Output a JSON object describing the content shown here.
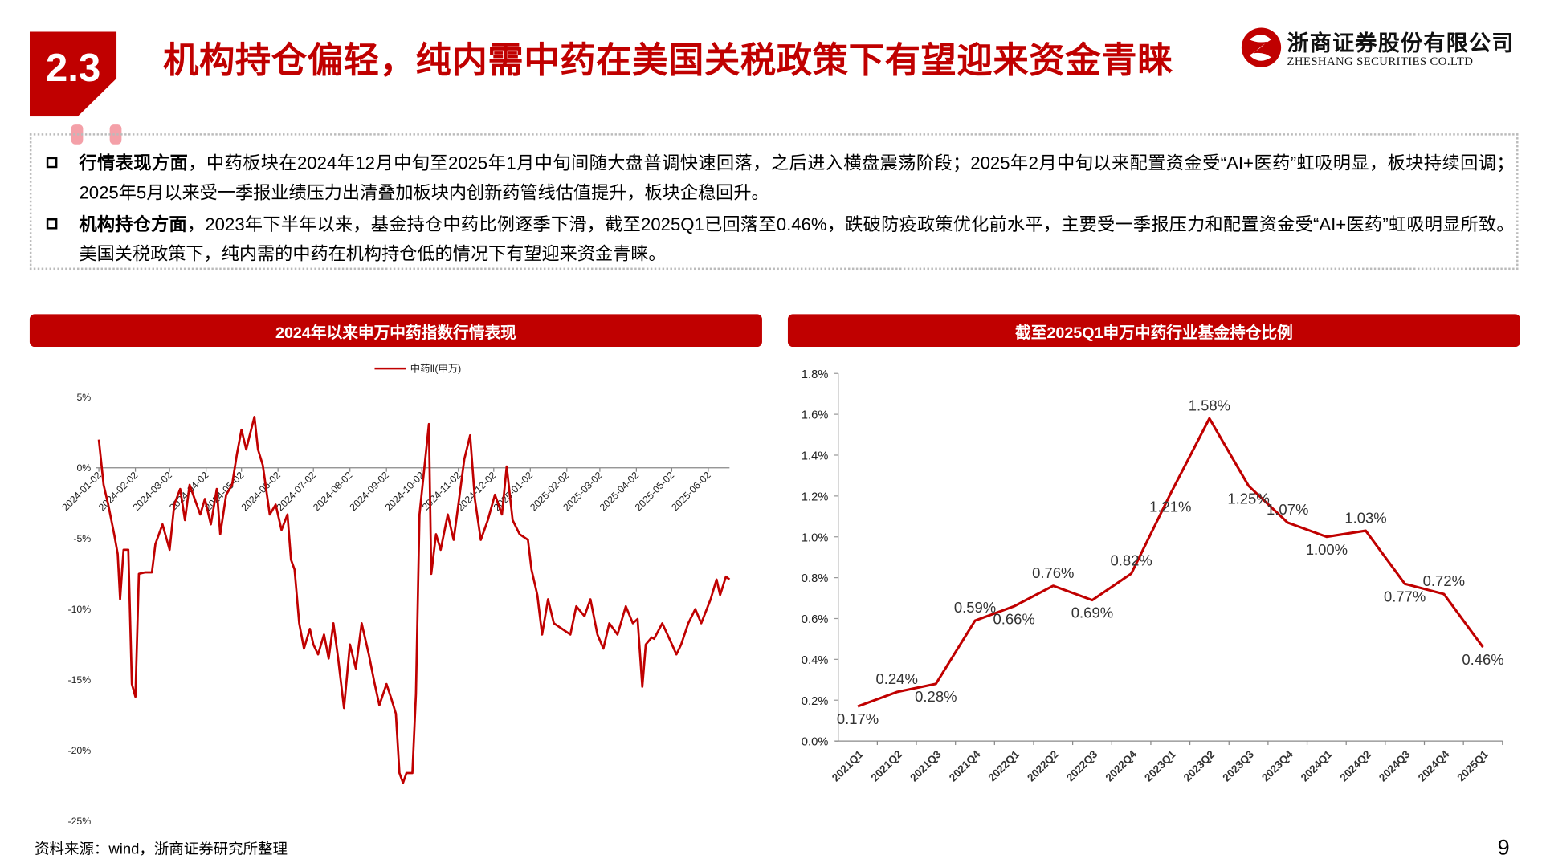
{
  "header": {
    "section": "2.3",
    "title": "机构持仓偏轻，纯内需中药在美国关税政策下有望迎来资金青睐",
    "company": "浙商证券股份有限公司",
    "company_en": "ZHESHANG SECURITIES CO.LTD"
  },
  "bullets": [
    {
      "heading": "行情表现方面",
      "text": "，中药板块在2024年12月中旬至2025年1月中旬间随大盘普调快速回落，之后进入横盘震荡阶段；2025年2月中旬以来配置资金受“AI+医药”虹吸明显，板块持续回调；2025年5月以来受一季报业绩压力出清叠加板块内创新药管线估值提升，板块企稳回升。"
    },
    {
      "heading": "机构持仓方面",
      "text": "，2023年下半年以来，基金持仓中药比例逐季下滑，截至2025Q1已回落至0.46%，跌破防疫政策优化前水平，主要受一季报压力和配置资金受“AI+医药”虹吸明显所致。美国关税政策下，纯内需的中药在机构持仓低的情况下有望迎来资金青睐。"
    }
  ],
  "chart_data": [
    {
      "type": "line",
      "title": "2024年以来申万中药指数行情表现",
      "x": [
        "2024-01-02",
        "2024-01-06",
        "2024-01-10",
        "2024-01-15",
        "2024-01-18",
        "2024-01-20",
        "2024-01-23",
        "2024-01-27",
        "2024-01-30",
        "2024-02-02",
        "2024-02-05",
        "2024-02-10",
        "2024-02-16",
        "2024-02-19",
        "2024-02-25",
        "2024-03-02",
        "2024-03-06",
        "2024-03-11",
        "2024-03-15",
        "2024-03-19",
        "2024-03-28",
        "2024-04-01",
        "2024-04-06",
        "2024-04-11",
        "2024-04-14",
        "2024-04-19",
        "2024-04-24",
        "2024-04-28",
        "2024-05-02",
        "2024-05-06",
        "2024-05-09",
        "2024-05-13",
        "2024-05-16",
        "2024-05-20",
        "2024-05-26",
        "2024-05-31",
        "2024-06-05",
        "2024-06-10",
        "2024-06-13",
        "2024-06-16",
        "2024-06-20",
        "2024-06-24",
        "2024-06-29",
        "2024-07-02",
        "2024-07-06",
        "2024-07-11",
        "2024-07-15",
        "2024-07-19",
        "2024-07-23",
        "2024-07-28",
        "2024-08-02",
        "2024-08-07",
        "2024-08-12",
        "2024-08-18",
        "2024-08-23",
        "2024-08-27",
        "2024-09-02",
        "2024-09-06",
        "2024-09-10",
        "2024-09-13",
        "2024-09-16",
        "2024-09-19",
        "2024-09-24",
        "2024-09-27",
        "2024-09-30",
        "2024-10-08",
        "2024-10-10",
        "2024-10-14",
        "2024-10-18",
        "2024-10-24",
        "2024-10-29",
        "2024-11-02",
        "2024-11-07",
        "2024-11-12",
        "2024-11-16",
        "2024-11-21",
        "2024-11-27",
        "2024-12-03",
        "2024-12-09",
        "2024-12-13",
        "2024-12-18",
        "2024-12-24",
        "2024-12-31",
        "2025-01-03",
        "2025-01-08",
        "2025-01-12",
        "2025-01-17",
        "2025-01-22",
        "2025-02-05",
        "2025-02-10",
        "2025-02-17",
        "2025-02-22",
        "2025-02-28",
        "2025-03-05",
        "2025-03-10",
        "2025-03-17",
        "2025-03-24",
        "2025-03-30",
        "2025-04-03",
        "2025-04-07",
        "2025-04-10",
        "2025-04-15",
        "2025-04-17",
        "2025-04-24",
        "2025-04-30",
        "2025-05-06",
        "2025-05-10",
        "2025-05-16",
        "2025-05-22",
        "2025-05-27",
        "2025-06-04",
        "2025-06-09",
        "2025-06-12",
        "2025-06-17",
        "2025-06-20"
      ],
      "series": [
        {
          "name": "中药Ⅱ(申万)",
          "color": "#c00000",
          "values": [
            2,
            -1.2,
            -2.6,
            -4.7,
            -6.1,
            -9.3,
            -5.8,
            -5.8,
            -15.3,
            -16.2,
            -7.5,
            -7.4,
            -7.4,
            -5.4,
            -4,
            -5.8,
            -2.6,
            -1.5,
            -3.7,
            -1.2,
            -3.3,
            -2.2,
            -4,
            -1.5,
            -4.7,
            -1.9,
            -1.2,
            0.9,
            2.7,
            1.3,
            2.3,
            3.6,
            1.3,
            0.2,
            -3.3,
            -2.6,
            -4.4,
            -3.3,
            -6.5,
            -7.2,
            -11,
            -12.8,
            -11.4,
            -12.5,
            -13.2,
            -11.8,
            -13.5,
            -11,
            -13.5,
            -17,
            -12.5,
            -14.2,
            -11,
            -13.2,
            -15.3,
            -16.8,
            -15.3,
            -16.3,
            -17.4,
            -21.6,
            -22.3,
            -21.6,
            -21.6,
            -16,
            -3.3,
            3.1,
            -7.5,
            -4.7,
            -5.8,
            -3.3,
            -5.1,
            -2.6,
            0.6,
            2.3,
            -2.2,
            -5.1,
            -3.7,
            -1.9,
            -3.3,
            0.1,
            -3.7,
            -4.7,
            -5.1,
            -7.2,
            -9,
            -11.8,
            -9.3,
            -11,
            -11.8,
            -9.8,
            -10.5,
            -9.3,
            -11.8,
            -12.8,
            -11,
            -11.8,
            -9.8,
            -11,
            -10.7,
            -15.5,
            -12.5,
            -12,
            -12.1,
            -11,
            -12.1,
            -13.2,
            -12.5,
            -11,
            -10,
            -11,
            -9.3,
            -7.9,
            -9,
            -7.7,
            -7.9
          ]
        }
      ],
      "xlim": [
        "2024-01-02",
        "2025-06-20"
      ],
      "xticks": [
        "2024-01-02",
        "2024-02-02",
        "2024-03-02",
        "2024-04-02",
        "2024-05-02",
        "2024-06-02",
        "2024-07-02",
        "2024-08-02",
        "2024-09-02",
        "2024-10-02",
        "2024-11-02",
        "2024-12-02",
        "2025-01-02",
        "2025-02-02",
        "2025-03-02",
        "2025-04-02",
        "2025-05-02",
        "2025-06-02"
      ],
      "ylim": [
        -25,
        5
      ],
      "yticks": [
        {
          "value": 5,
          "label": "5%"
        },
        {
          "value": 0,
          "label": "0%"
        },
        {
          "value": -5,
          "label": "-5%"
        },
        {
          "value": -10,
          "label": "-10%"
        },
        {
          "value": -15,
          "label": "-15%"
        },
        {
          "value": -20,
          "label": "-20%"
        },
        {
          "value": -25,
          "label": "-25%"
        }
      ],
      "legend": "top",
      "grid": false
    },
    {
      "type": "line",
      "title": "截至2025Q1申万中药行业基金持仓比例",
      "categories": [
        "2021Q1",
        "2021Q2",
        "2021Q3",
        "2021Q4",
        "2022Q1",
        "2022Q2",
        "2022Q3",
        "2022Q4",
        "2023Q1",
        "2023Q2",
        "2023Q3",
        "2023Q4",
        "2024Q1",
        "2024Q2",
        "2024Q3",
        "2024Q4",
        "2025Q1"
      ],
      "values": [
        0.17,
        0.24,
        0.28,
        0.59,
        0.66,
        0.76,
        0.69,
        0.82,
        1.21,
        1.58,
        1.25,
        1.07,
        1.0,
        1.03,
        0.77,
        0.72,
        0.46
      ],
      "value_labels": [
        "0.17%",
        "0.24%",
        "0.28%",
        "0.59%",
        "0.66%",
        "0.76%",
        "0.69%",
        "0.82%",
        "1.21%",
        "1.58%",
        "1.25%",
        "1.07%",
        "1.00%",
        "1.03%",
        "0.77%",
        "0.72%",
        "0.46%"
      ],
      "color": "#c00000",
      "ylim": [
        0,
        1.8
      ],
      "yticks": [
        {
          "value": 0,
          "label": "0.0%"
        },
        {
          "value": 0.2,
          "label": "0.2%"
        },
        {
          "value": 0.4,
          "label": "0.4%"
        },
        {
          "value": 0.6,
          "label": "0.6%"
        },
        {
          "value": 0.8,
          "label": "0.8%"
        },
        {
          "value": 1.0,
          "label": "1.0%"
        },
        {
          "value": 1.2,
          "label": "1.2%"
        },
        {
          "value": 1.4,
          "label": "1.4%"
        },
        {
          "value": 1.6,
          "label": "1.6%"
        },
        {
          "value": 1.8,
          "label": "1.8%"
        }
      ],
      "grid": false
    }
  ],
  "source": "资料来源：wind，浙商证券研究所整理",
  "page_number": "9"
}
